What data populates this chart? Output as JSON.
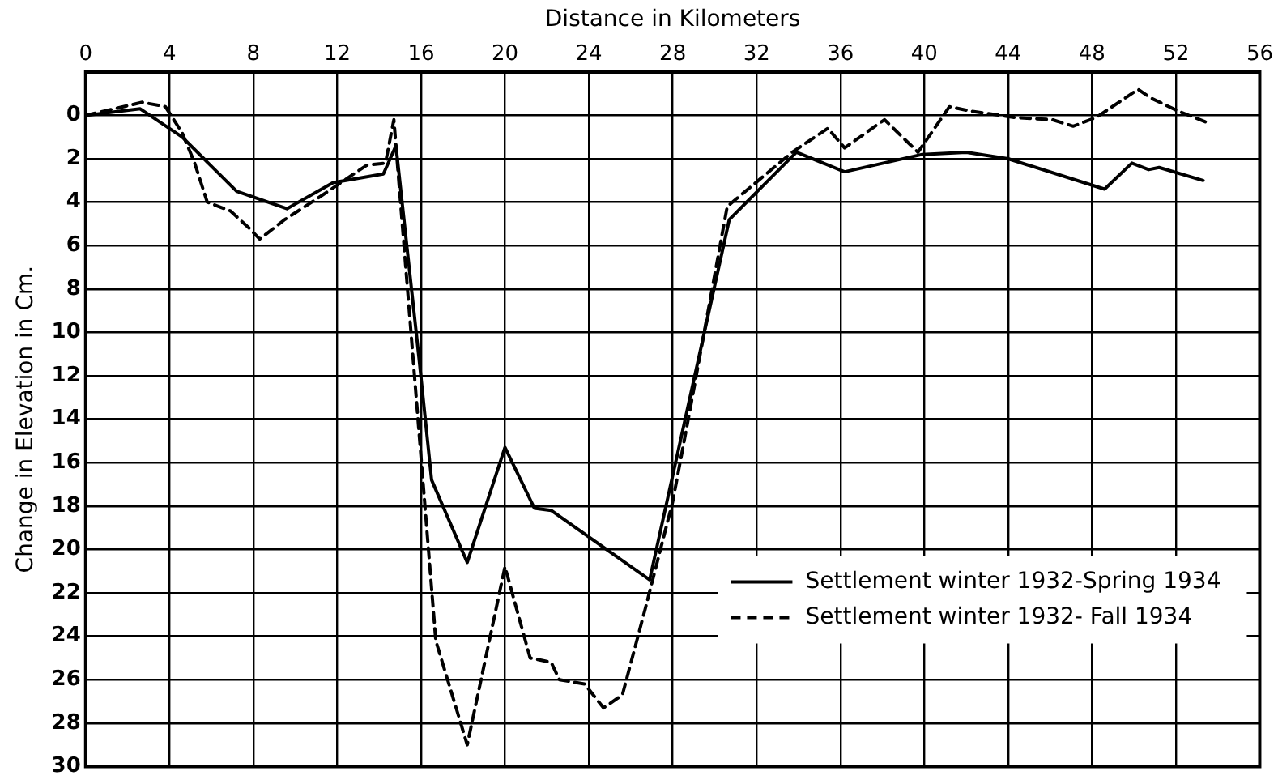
{
  "chart_data": {
    "type": "line",
    "xlabel": "Distance in Kilometers",
    "ylabel": "Change in Elevation in Cm.",
    "xlim": [
      0,
      56
    ],
    "xticks": [
      0,
      4,
      8,
      12,
      16,
      20,
      24,
      28,
      32,
      36,
      40,
      44,
      48,
      52,
      56
    ],
    "ylim": [
      30,
      -2
    ],
    "yticks": [
      0,
      2,
      4,
      6,
      8,
      10,
      12,
      14,
      16,
      18,
      20,
      22,
      24,
      26,
      28,
      30
    ],
    "grid": true,
    "legend": "bottom right",
    "marker": "none",
    "series": [
      {
        "name": "Settlement winter 1932-Spring 1934",
        "color": "#000000",
        "line_style": "solid",
        "x": [
          0,
          2.6,
          4.6,
          7.2,
          9.6,
          11.8,
          14.2,
          14.8,
          15.9,
          16.5,
          18.2,
          20.0,
          21.4,
          22.2,
          26.9,
          30.7,
          33.9,
          36.2,
          39.9,
          42.0,
          44.0,
          48.6,
          49.9,
          50.7,
          51.2,
          53.3
        ],
        "values": [
          0,
          -0.3,
          1,
          3.5,
          4.3,
          3.1,
          2.7,
          1.4,
          11.2,
          16.8,
          20.6,
          15.3,
          18.1,
          18.2,
          21.4,
          4.8,
          1.7,
          2.6,
          1.8,
          1.7,
          2.0,
          3.4,
          2.2,
          2.5,
          2.4,
          3.0
        ]
      },
      {
        "name": "Settlement winter 1932- Fall 1934",
        "color": "#000000",
        "line_style": "dashed",
        "x": [
          0,
          2.7,
          3.8,
          4.6,
          5.2,
          5.8,
          6.9,
          7.8,
          8.3,
          9.5,
          11.1,
          13.4,
          14.3,
          14.7,
          16.0,
          16.7,
          18.2,
          20.0,
          21.2,
          22.2,
          22.6,
          23.8,
          24.7,
          25.6,
          26.7,
          28.0,
          28.8,
          30.6,
          33.7,
          35.4,
          36.2,
          38.1,
          39.7,
          41.2,
          42.2,
          44.3,
          46.1,
          47.1,
          48.2,
          50.2,
          50.8,
          52.1,
          53.4
        ],
        "values": [
          0,
          -0.6,
          -0.4,
          0.8,
          2.2,
          4,
          4.4,
          5.2,
          5.7,
          4.8,
          3.8,
          2.3,
          2.2,
          0.2,
          15.8,
          24.2,
          29,
          20.8,
          25,
          25.2,
          26,
          26.2,
          27.3,
          26.7,
          22.7,
          17.8,
          13.7,
          4.2,
          1.7,
          0.6,
          1.5,
          0.2,
          1.7,
          -0.4,
          -0.2,
          0.1,
          0.2,
          0.5,
          0.1,
          -1.2,
          -0.8,
          -0.2,
          0.3
        ]
      }
    ]
  }
}
